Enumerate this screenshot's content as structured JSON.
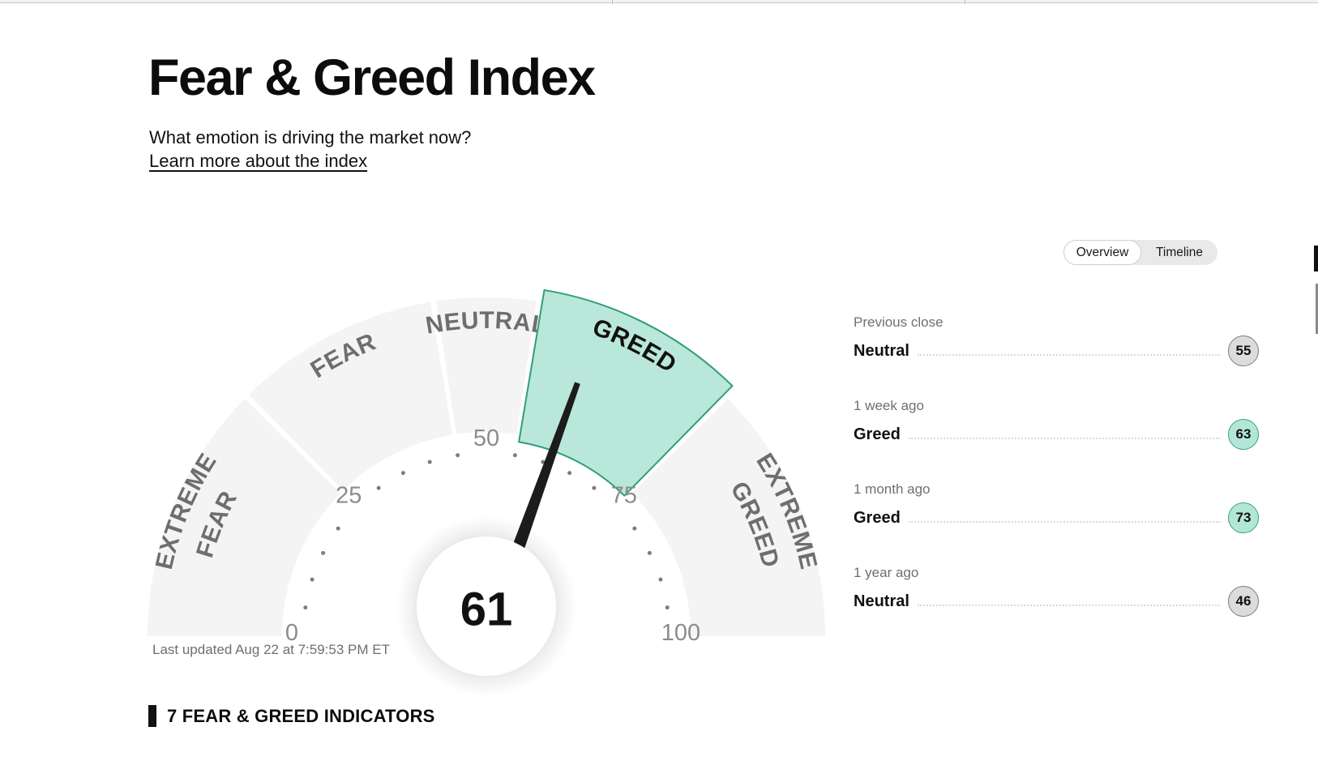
{
  "header": {
    "title": "Fear & Greed Index",
    "subtitle": "What emotion is driving the market now?",
    "learn_more": "Learn more about the index"
  },
  "toggle": {
    "options": [
      {
        "label": "Overview",
        "active": true
      },
      {
        "label": "Timeline",
        "active": false
      }
    ]
  },
  "gauge": {
    "value": 61,
    "value_label": "61",
    "min": 0,
    "max": 100,
    "tick_labels": [
      0,
      25,
      50,
      75,
      100
    ],
    "dot_step": 5,
    "gap": 0.28,
    "segments": [
      {
        "label": "EXTREME FEAR",
        "lines": [
          "EXTREME",
          "FEAR"
        ],
        "from": 0,
        "to": 25,
        "selected": false
      },
      {
        "label": "FEAR",
        "lines": [
          "FEAR"
        ],
        "from": 25,
        "to": 45,
        "selected": false
      },
      {
        "label": "NEUTRAL",
        "lines": [
          "NEUTRAL"
        ],
        "from": 45,
        "to": 55,
        "selected": false
      },
      {
        "label": "GREED",
        "lines": [
          "GREED"
        ],
        "from": 55,
        "to": 75,
        "selected": true
      },
      {
        "label": "EXTREME GREED",
        "lines": [
          "EXTREME",
          "GREED"
        ],
        "from": 75,
        "to": 100,
        "selected": false
      }
    ],
    "colors": {
      "segment_fill": "#f4f4f4",
      "selected_fill": "#b9e7da",
      "selected_stroke": "#2f9e7a",
      "label_gray": "#6e6e6e",
      "label_selected": "#111111",
      "tick_dot": "#7d7d7d",
      "tick_text": "#8c8c8c",
      "needle": "#1c1c1c"
    }
  },
  "page": {
    "last_updated": "Last updated Aug 22 at 7:59:53 PM ET"
  },
  "history": {
    "rows": [
      {
        "period": "Previous close",
        "sentiment": "Neutral",
        "value": "55",
        "tone": "gray"
      },
      {
        "period": "1 week ago",
        "sentiment": "Greed",
        "value": "63",
        "tone": "teal"
      },
      {
        "period": "1 month ago",
        "sentiment": "Greed",
        "value": "73",
        "tone": "teal"
      },
      {
        "period": "1 year ago",
        "sentiment": "Neutral",
        "value": "46",
        "tone": "gray"
      }
    ]
  },
  "sections": {
    "indicators_header": "7 FEAR & GREED INDICATORS"
  }
}
